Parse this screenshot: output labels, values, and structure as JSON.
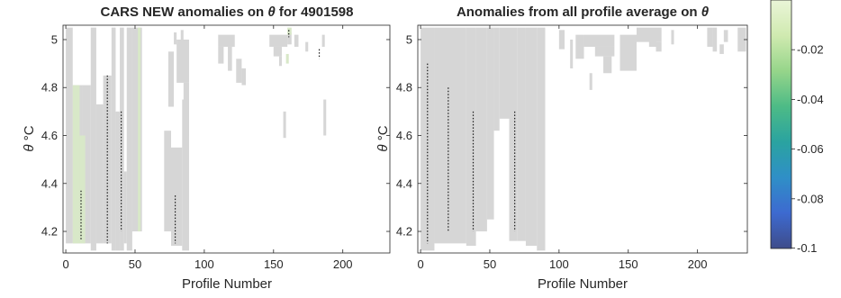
{
  "chart_data": [
    {
      "type": "heatmap",
      "title_prefix": "CARS NEW anomalies on ",
      "title_symbol": "θ",
      "title_suffix": " for 4901598",
      "xlabel": "Profile Number",
      "ylabel_symbol": "θ",
      "ylabel_unit": "°C",
      "xlim": [
        -2,
        234
      ],
      "ylim": [
        4.11,
        5.06
      ],
      "xticks": [
        0,
        50,
        100,
        150,
        200
      ],
      "yticks": [
        4.2,
        4.4,
        4.6,
        4.8,
        5
      ],
      "grey_cells": [
        [
          0,
          5,
          4.15,
          5.05
        ],
        [
          5,
          12,
          4.15,
          4.81
        ],
        [
          12,
          18,
          4.15,
          4.81
        ],
        [
          18,
          22,
          4.12,
          5.05
        ],
        [
          22,
          27,
          4.15,
          4.73
        ],
        [
          27,
          33,
          4.15,
          4.85
        ],
        [
          33,
          36,
          4.12,
          5.05
        ],
        [
          36,
          39,
          4.12,
          4.7
        ],
        [
          39,
          42,
          4.12,
          5.05
        ],
        [
          42,
          44,
          4.15,
          4.45
        ],
        [
          44,
          48,
          4.12,
          5.05
        ],
        [
          48,
          55,
          4.2,
          5.05
        ],
        [
          71,
          76,
          4.2,
          4.62
        ],
        [
          76,
          84,
          4.14,
          4.55
        ],
        [
          84,
          89,
          4.12,
          4.75
        ],
        [
          74,
          78,
          4.72,
          4.95
        ],
        [
          80,
          89,
          4.82,
          5.0
        ],
        [
          85,
          89,
          4.6,
          4.82
        ],
        [
          78,
          80,
          4.98,
          5.03
        ],
        [
          83,
          85,
          4.98,
          5.04
        ],
        [
          110,
          122,
          4.97,
          5.02
        ],
        [
          110,
          114,
          4.9,
          4.97
        ],
        [
          117,
          120,
          4.87,
          4.97
        ],
        [
          123,
          127,
          4.82,
          4.92
        ],
        [
          127,
          130,
          4.81,
          4.88
        ],
        [
          147,
          160,
          4.97,
          5.02
        ],
        [
          150,
          156,
          4.93,
          4.97
        ],
        [
          154,
          156,
          4.89,
          4.93
        ],
        [
          160,
          163,
          4.98,
          5.03
        ],
        [
          165,
          168,
          4.97,
          5.02
        ],
        [
          173,
          175,
          4.95,
          4.99
        ],
        [
          157,
          159,
          4.59,
          4.7
        ],
        [
          186,
          188,
          4.6,
          4.75
        ],
        [
          185,
          187,
          4.97,
          5.02
        ]
      ],
      "green_cells": [
        [
          5,
          10,
          4.15,
          4.81
        ],
        [
          10,
          14,
          4.15,
          4.6
        ],
        [
          52,
          54,
          4.2,
          5.05
        ],
        [
          160,
          163,
          5.02,
          5.05
        ],
        [
          159,
          161,
          4.9,
          4.94
        ]
      ],
      "anomaly_marks": [
        [
          11,
          4.16,
          4.37
        ],
        [
          30,
          4.15,
          4.85
        ],
        [
          40,
          4.2,
          4.7
        ],
        [
          79,
          4.15,
          4.35
        ],
        [
          161,
          5.01,
          5.04
        ],
        [
          183,
          4.92,
          4.96
        ]
      ]
    },
    {
      "type": "heatmap",
      "title_prefix": "Anomalies from all profile average on ",
      "title_symbol": "θ",
      "title_suffix": "",
      "xlabel": "Profile Number",
      "ylabel_symbol": "θ",
      "ylabel_unit": "°C",
      "xlim": [
        -2,
        236
      ],
      "ylim": [
        4.11,
        5.06
      ],
      "xticks": [
        0,
        50,
        100,
        150,
        200
      ],
      "yticks": [
        4.2,
        4.4,
        4.6,
        4.8,
        5
      ],
      "grey_cells": [
        [
          0,
          10,
          4.12,
          5.05
        ],
        [
          10,
          33,
          4.15,
          5.05
        ],
        [
          33,
          40,
          4.14,
          5.05
        ],
        [
          40,
          48,
          4.2,
          5.05
        ],
        [
          48,
          53,
          4.25,
          5.05
        ],
        [
          53,
          57,
          4.62,
          5.05
        ],
        [
          57,
          64,
          4.67,
          5.05
        ],
        [
          64,
          70,
          4.16,
          5.05
        ],
        [
          70,
          76,
          4.16,
          5.05
        ],
        [
          76,
          84,
          4.14,
          5.05
        ],
        [
          84,
          90,
          4.12,
          5.05
        ],
        [
          100,
          104,
          4.96,
          5.04
        ],
        [
          108,
          110,
          4.88,
          5.0
        ],
        [
          112,
          118,
          4.92,
          5.02
        ],
        [
          118,
          140,
          4.97,
          5.02
        ],
        [
          126,
          140,
          4.93,
          4.97
        ],
        [
          132,
          138,
          4.86,
          4.93
        ],
        [
          144,
          156,
          4.87,
          5.02
        ],
        [
          156,
          174,
          4.99,
          5.05
        ],
        [
          165,
          170,
          4.97,
          5.0
        ],
        [
          170,
          174,
          4.95,
          4.99
        ],
        [
          181,
          183,
          4.98,
          5.04
        ],
        [
          207,
          211,
          4.97,
          5.05
        ],
        [
          211,
          214,
          4.95,
          5.05
        ],
        [
          219,
          222,
          4.99,
          5.04
        ],
        [
          229,
          235,
          4.95,
          5.05
        ],
        [
          122,
          124,
          4.79,
          4.86
        ],
        [
          216,
          219,
          4.94,
          4.98
        ]
      ],
      "green_cells": [],
      "anomaly_marks": [
        [
          5,
          4.15,
          4.9
        ],
        [
          20,
          4.2,
          4.8
        ],
        [
          38,
          4.2,
          4.7
        ],
        [
          68,
          4.2,
          4.7
        ]
      ]
    }
  ],
  "colorbar": {
    "ticks": [
      -0.02,
      -0.04,
      -0.06,
      -0.08,
      -0.1
    ],
    "range": [
      -0.1,
      0.0
    ],
    "colormap": [
      "#3e4c8a",
      "#3d6ad0",
      "#2f8fc7",
      "#2aa3a0",
      "#4dbb86",
      "#96d58a",
      "#d0eab0",
      "#eaf5d8"
    ]
  },
  "colors": {
    "grey_cell": "#d6d6d6",
    "green_cell": "#d8e8c8",
    "axis": "#262626",
    "dots": "#1a1a1a"
  }
}
